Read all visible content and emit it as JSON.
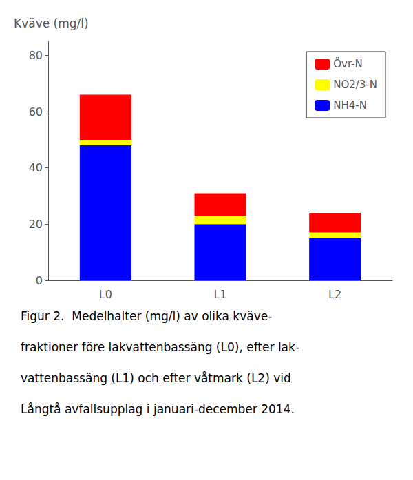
{
  "chart_data": {
    "type": "bar",
    "stacked": true,
    "ylabel": "Kväve (mg/l)",
    "categories": [
      "L0",
      "L1",
      "L2"
    ],
    "series": [
      {
        "name": "NH4-N",
        "color": "#0000FF",
        "values": [
          48,
          20,
          15
        ]
      },
      {
        "name": "NO2/3-N",
        "color": "#FFFF00",
        "values": [
          2,
          3,
          2
        ]
      },
      {
        "name": "Övr-N",
        "color": "#FF0000",
        "values": [
          16,
          8,
          7
        ]
      }
    ],
    "ylim": [
      0,
      85
    ],
    "yticks": [
      0,
      20,
      40,
      60,
      80
    ],
    "grid": false,
    "legend": "upper right",
    "annotations": [
      "Figur 2.  Medelhalter (mg/l) av olika kväve-",
      "fraktioner före lakvattenbassäng (L0), efter lak-",
      "vattenbassäng (L1) och efter våtmark (L2) vid",
      "Långtå avfallsupplag i januari-december 2014."
    ]
  }
}
